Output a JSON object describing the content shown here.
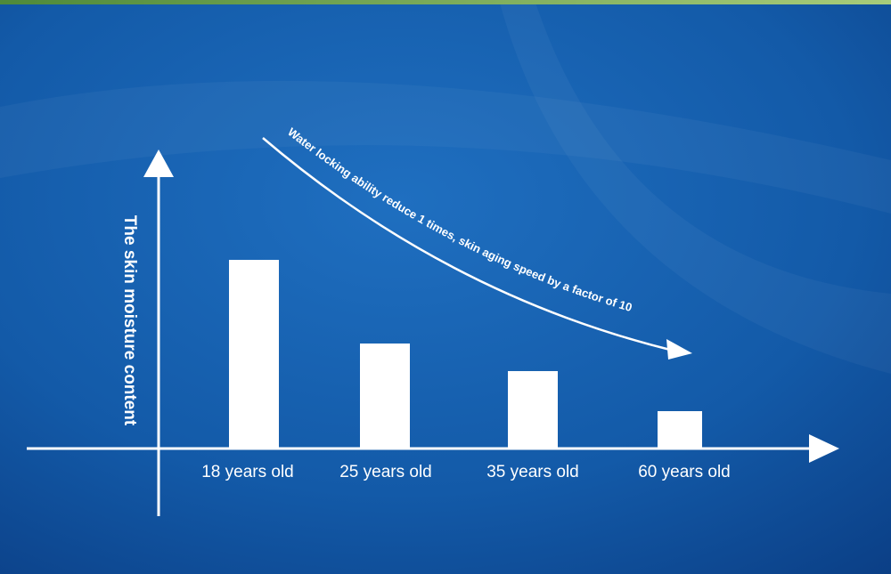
{
  "chart_data": {
    "type": "bar",
    "y_label": "The skin moisture content",
    "annotation": "Water locking ability reduce 1 times, skin aging speed by a factor of 10",
    "categories": [
      "18 years old",
      "25 years old",
      "35 years old",
      "60 years old"
    ],
    "values": [
      211,
      117,
      86,
      41
    ],
    "color": "#ffffff",
    "ylim": [
      0,
      333
    ]
  }
}
